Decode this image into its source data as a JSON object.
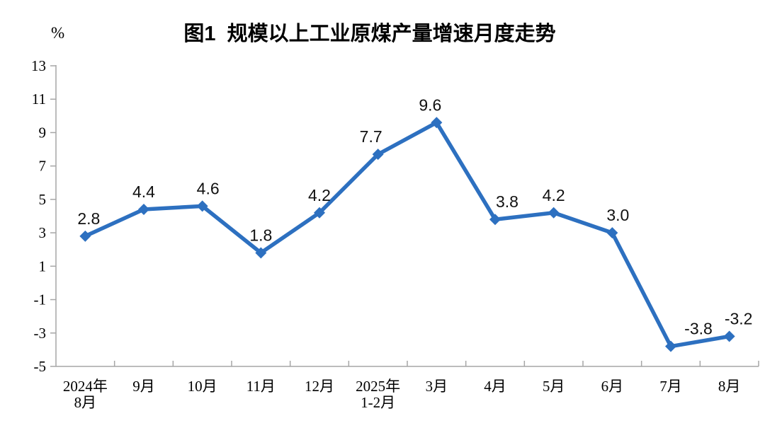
{
  "page": {
    "background_color": "#ffffff"
  },
  "chart_data": {
    "type": "line",
    "title": "图1  规模以上工业原煤产量增速月度走势",
    "unit_label": "%",
    "categories": [
      [
        "2024年",
        "8月"
      ],
      [
        "9月"
      ],
      [
        "10月"
      ],
      [
        "11月"
      ],
      [
        "12月"
      ],
      [
        "2025年",
        "1-2月"
      ],
      [
        "3月"
      ],
      [
        "4月"
      ],
      [
        "5月"
      ],
      [
        "6月"
      ],
      [
        "7月"
      ],
      [
        "8月"
      ]
    ],
    "values": [
      2.8,
      4.4,
      4.6,
      1.8,
      4.2,
      7.7,
      9.6,
      3.8,
      4.2,
      3.0,
      -3.8,
      -3.2
    ],
    "data_labels": [
      "2.8",
      "4.4",
      "4.6",
      "1.8",
      "4.2",
      "7.7",
      "9.6",
      "3.8",
      "4.2",
      "3.0",
      "-3.8",
      "-3.2"
    ],
    "ylim": [
      -5,
      13
    ],
    "yticks": [
      13,
      11,
      9,
      7,
      5,
      3,
      1,
      -1,
      -3,
      -5
    ],
    "ytick_step": 2,
    "grid": false,
    "legend": "none",
    "marker": "diamond",
    "line_color": "#2d70c0",
    "axis_color": "#a6a6a6",
    "text_color": "#000000",
    "label_dx": [
      5,
      0,
      8,
      0,
      0,
      -10,
      -9,
      17,
      0,
      8,
      39,
      13
    ]
  }
}
